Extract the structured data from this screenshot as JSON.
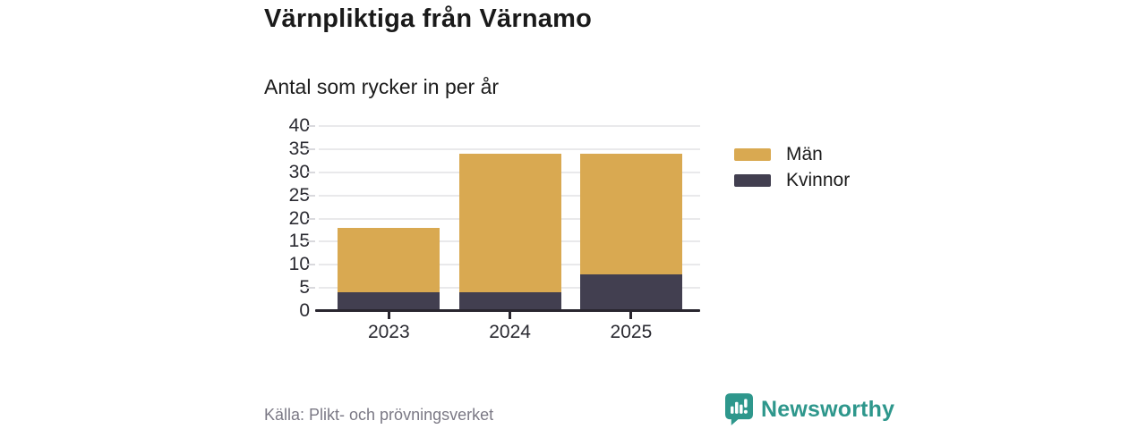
{
  "header": {
    "title": "Värnpliktiga från Värnamo",
    "subtitle": "Antal som rycker in per år"
  },
  "chart_data": {
    "type": "bar",
    "stacked": true,
    "title": "Värnpliktiga från Värnamo",
    "subtitle": "Antal som rycker in per år",
    "categories": [
      "2023",
      "2024",
      "2025"
    ],
    "series": [
      {
        "name": "Män",
        "color": "#D9A951",
        "values": [
          14,
          30,
          26
        ]
      },
      {
        "name": "Kvinnor",
        "color": "#423F50",
        "values": [
          4,
          4,
          8
        ]
      }
    ],
    "stack_totals": [
      18,
      34,
      34
    ],
    "xlabel": "",
    "ylabel": "",
    "ylim": [
      0,
      40
    ],
    "y_ticks": [
      0,
      5,
      10,
      15,
      20,
      25,
      30,
      35,
      40
    ],
    "grid": true,
    "legend_position": "right-top"
  },
  "footer": {
    "source": "Källa: Plikt- och prövningsverket",
    "brand": "Newsworthy"
  },
  "colors": {
    "men": "#D9A951",
    "women": "#423F50",
    "brand_teal": "#2E978C",
    "gridline": "#E9E9EB",
    "axis": "#29262F",
    "title_text": "#1A1A1A",
    "source_text": "#7B7985"
  }
}
